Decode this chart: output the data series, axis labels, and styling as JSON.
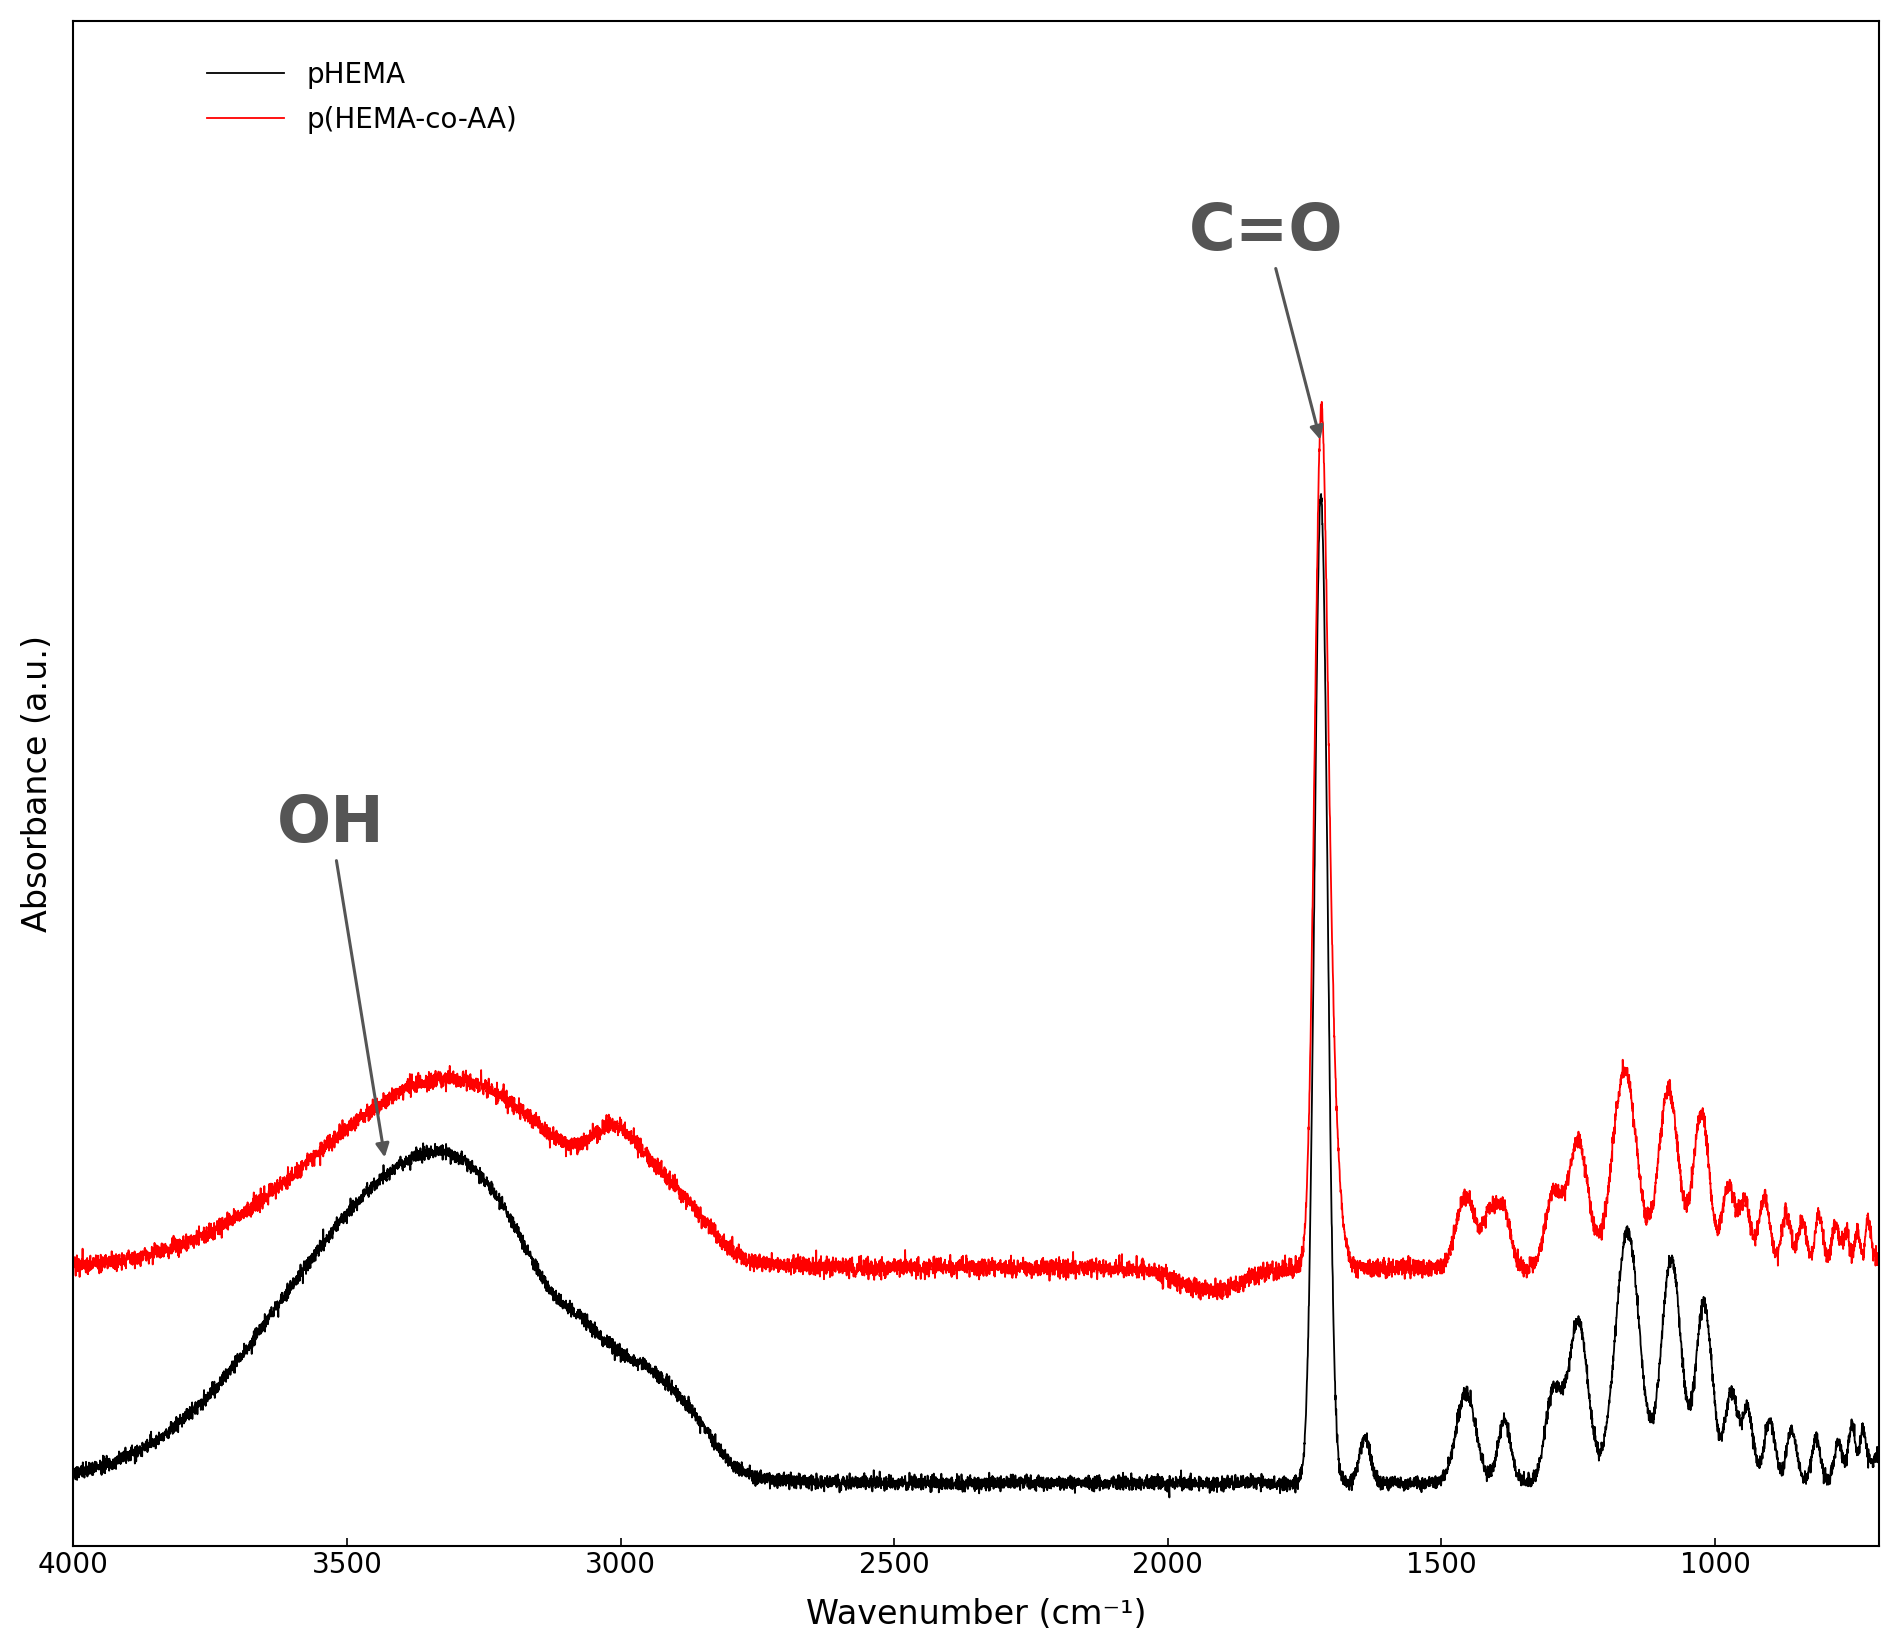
{
  "xlabel": "Wavenumber (cm⁻¹)",
  "ylabel": "Absorbance (a.u.)",
  "legend": [
    "pHEMA",
    "p(HEMA-co-AA)"
  ],
  "colors": [
    "black",
    "red"
  ],
  "background_color": "#ffffff",
  "xlabel_fontsize": 24,
  "ylabel_fontsize": 24,
  "tick_fontsize": 20,
  "legend_fontsize": 20,
  "annotation_fontsize": 46,
  "annotation_color": "#555555"
}
